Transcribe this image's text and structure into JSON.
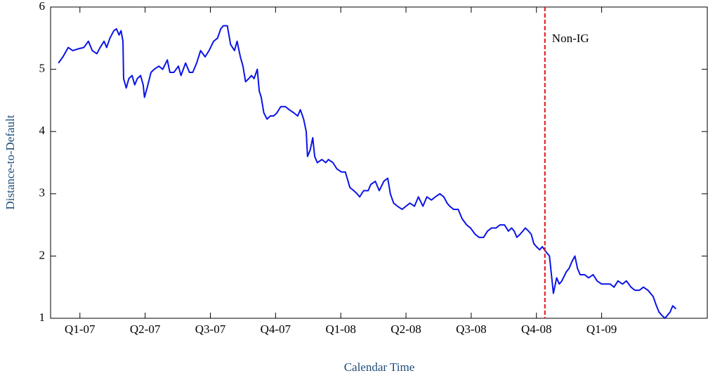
{
  "chart_data": {
    "type": "line",
    "xlabel": "Calendar Time",
    "ylabel": "Distance-to-Default",
    "xlim": [
      -0.45,
      9.62
    ],
    "ylim": [
      1,
      6
    ],
    "yticks": [
      1,
      2,
      3,
      4,
      5,
      6
    ],
    "xticks": [
      {
        "value": 0,
        "label": "Q1-07"
      },
      {
        "value": 1,
        "label": "Q2-07"
      },
      {
        "value": 2,
        "label": "Q3-07"
      },
      {
        "value": 3,
        "label": "Q4-07"
      },
      {
        "value": 4,
        "label": "Q1-08"
      },
      {
        "value": 5,
        "label": "Q2-08"
      },
      {
        "value": 6,
        "label": "Q3-08"
      },
      {
        "value": 7,
        "label": "Q4-08"
      },
      {
        "value": 8,
        "label": "Q1-09"
      }
    ],
    "grid": false,
    "annotations": [
      {
        "x": 7.13,
        "text": "Non-IG",
        "color": "#e0151b"
      }
    ],
    "series": [
      {
        "color": "#0b14e6",
        "x": [
          -0.33,
          -0.26,
          -0.18,
          -0.11,
          -0.02,
          0.06,
          0.13,
          0.19,
          0.26,
          0.31,
          0.37,
          0.41,
          0.46,
          0.52,
          0.56,
          0.6,
          0.63,
          0.66,
          0.67,
          0.71,
          0.75,
          0.8,
          0.84,
          0.88,
          0.93,
          0.97,
          0.99,
          1.03,
          1.09,
          1.14,
          1.21,
          1.27,
          1.34,
          1.38,
          1.44,
          1.51,
          1.55,
          1.62,
          1.68,
          1.73,
          1.79,
          1.85,
          1.92,
          1.98,
          2.05,
          2.11,
          2.16,
          2.2,
          2.26,
          2.31,
          2.37,
          2.41,
          2.46,
          2.5,
          2.54,
          2.59,
          2.63,
          2.67,
          2.72,
          2.75,
          2.78,
          2.82,
          2.87,
          2.92,
          2.97,
          3.02,
          3.08,
          3.15,
          3.21,
          3.28,
          3.34,
          3.38,
          3.43,
          3.47,
          3.49,
          3.53,
          3.57,
          3.6,
          3.64,
          3.71,
          3.77,
          3.81,
          3.88,
          3.94,
          4.01,
          4.07,
          4.14,
          4.2,
          4.25,
          4.29,
          4.35,
          4.42,
          4.46,
          4.53,
          4.59,
          4.66,
          4.72,
          4.76,
          4.81,
          4.87,
          4.94,
          5.0,
          5.06,
          5.13,
          5.19,
          5.26,
          5.32,
          5.39,
          5.45,
          5.52,
          5.58,
          5.63,
          5.67,
          5.73,
          5.8,
          5.86,
          5.93,
          5.99,
          6.06,
          6.12,
          6.19,
          6.25,
          6.31,
          6.38,
          6.44,
          6.51,
          6.57,
          6.62,
          6.66,
          6.7,
          6.75,
          6.79,
          6.83,
          6.88,
          6.92,
          6.96,
          7.0,
          7.05,
          7.09,
          7.16,
          7.2,
          7.24,
          7.26,
          7.31,
          7.35,
          7.39,
          7.46,
          7.5,
          7.54,
          7.59,
          7.63,
          7.67,
          7.74,
          7.8,
          7.87,
          7.93,
          8.0,
          8.06,
          8.13,
          8.19,
          8.25,
          8.32,
          8.38,
          8.45,
          8.51,
          8.58,
          8.64,
          8.71,
          8.75,
          8.79,
          8.84,
          8.88,
          8.92,
          8.97,
          9.01,
          9.05,
          9.09,
          9.14
        ],
        "values": [
          5.1,
          5.2,
          5.35,
          5.3,
          5.33,
          5.35,
          5.45,
          5.3,
          5.25,
          5.35,
          5.45,
          5.35,
          5.5,
          5.62,
          5.65,
          5.55,
          5.62,
          5.45,
          4.85,
          4.7,
          4.85,
          4.9,
          4.75,
          4.85,
          4.9,
          4.75,
          4.55,
          4.7,
          4.95,
          5.0,
          5.05,
          5.0,
          5.15,
          4.95,
          4.95,
          5.05,
          4.9,
          5.1,
          4.95,
          4.95,
          5.1,
          5.3,
          5.2,
          5.3,
          5.45,
          5.5,
          5.65,
          5.7,
          5.7,
          5.4,
          5.3,
          5.45,
          5.2,
          5.05,
          4.8,
          4.85,
          4.9,
          4.85,
          5.0,
          4.65,
          4.55,
          4.3,
          4.2,
          4.25,
          4.25,
          4.3,
          4.4,
          4.4,
          4.35,
          4.3,
          4.25,
          4.35,
          4.2,
          4.0,
          3.6,
          3.7,
          3.9,
          3.6,
          3.5,
          3.55,
          3.5,
          3.55,
          3.5,
          3.4,
          3.35,
          3.35,
          3.1,
          3.05,
          3.0,
          2.95,
          3.05,
          3.05,
          3.15,
          3.2,
          3.05,
          3.2,
          3.25,
          3.0,
          2.85,
          2.8,
          2.75,
          2.8,
          2.85,
          2.8,
          2.95,
          2.8,
          2.95,
          2.9,
          2.95,
          3.0,
          2.95,
          2.85,
          2.8,
          2.75,
          2.75,
          2.6,
          2.5,
          2.45,
          2.35,
          2.3,
          2.3,
          2.4,
          2.45,
          2.45,
          2.5,
          2.5,
          2.4,
          2.45,
          2.4,
          2.3,
          2.35,
          2.4,
          2.45,
          2.4,
          2.35,
          2.2,
          2.15,
          2.1,
          2.15,
          2.05,
          2.0,
          1.6,
          1.4,
          1.65,
          1.55,
          1.6,
          1.75,
          1.8,
          1.9,
          2.0,
          1.8,
          1.7,
          1.7,
          1.65,
          1.7,
          1.6,
          1.55,
          1.55,
          1.55,
          1.5,
          1.6,
          1.55,
          1.6,
          1.5,
          1.45,
          1.45,
          1.5,
          1.45,
          1.4,
          1.35,
          1.2,
          1.1,
          1.05,
          1.0,
          1.05,
          1.1,
          1.2,
          1.15
        ]
      }
    ]
  }
}
